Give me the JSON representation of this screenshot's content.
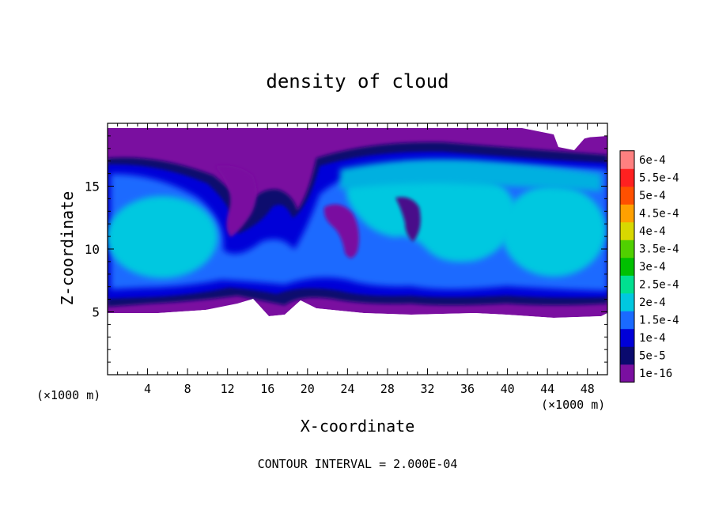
{
  "chart_data": {
    "type": "heatmap",
    "title": "density of cloud",
    "xlabel": "X-coordinate",
    "ylabel": "Z-coordinate",
    "x_unit_label": "(×1000 m)",
    "y_unit_label": "(×1000 m)",
    "xlim": [
      0,
      50
    ],
    "ylim": [
      0,
      20
    ],
    "x_ticks": [
      "4",
      "8",
      "12",
      "16",
      "20",
      "24",
      "28",
      "32",
      "36",
      "40",
      "44",
      "48"
    ],
    "y_ticks": [
      "5",
      "10",
      "15"
    ],
    "footer": "CONTOUR INTERVAL = 2.000E-04",
    "colorbar": {
      "levels": [
        "1e-16",
        "5e-5",
        "1e-4",
        "1.5e-4",
        "2e-4",
        "2.5e-4",
        "3e-4",
        "3.5e-4",
        "4e-4",
        "4.5e-4",
        "5e-4",
        "5.5e-4",
        "6e-4"
      ],
      "colors": [
        "#7a0fa0",
        "#0a0a6e",
        "#0000d8",
        "#1a6aff",
        "#00c8e0",
        "#00e090",
        "#00c000",
        "#50d000",
        "#d8d800",
        "#ffa000",
        "#ff5000",
        "#ff2020",
        "#ff8080"
      ]
    },
    "field_summary": {
      "cloud_base_z": 5,
      "cloud_top_z": 19,
      "max_density_approx": 0.0002,
      "description": "cloud layer between z≈5 and z≈19, peak density ~2e-4 in large eddies"
    }
  }
}
